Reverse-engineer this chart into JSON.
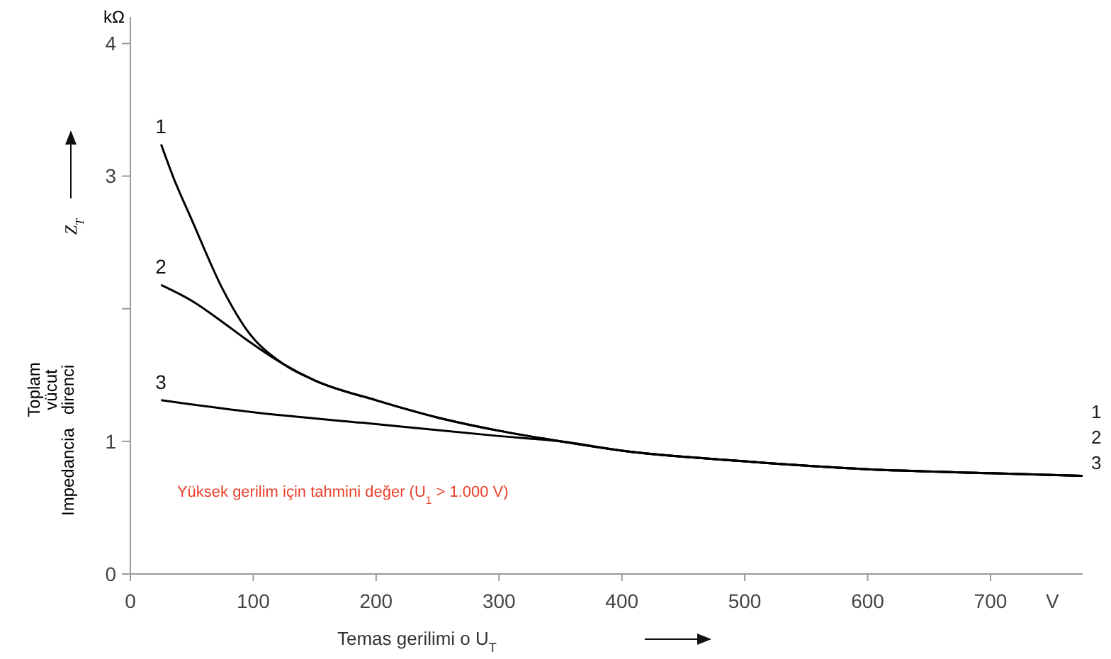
{
  "chart_data": {
    "type": "line",
    "xlabel": "Temas gerilimi  o U$_{T}$",
    "ylabel": "Toplam vücut direnci",
    "xlim": [
      0,
      775
    ],
    "xticks": [
      0,
      100,
      200,
      300,
      400,
      500,
      600,
      700
    ],
    "ylim": [
      0,
      4.2
    ],
    "yticks": [
      0,
      1,
      {
        "value": 2,
        "label": null
      },
      3,
      4
    ],
    "grid": false,
    "marker": "none",
    "line_style": "solid",
    "series": [
      {
        "name": "1",
        "color": "#000000",
        "x": [
          25,
          35,
          50,
          75,
          94,
          125,
          150,
          200,
          250,
          300,
          350,
          400,
          500,
          600,
          700,
          775
        ],
        "values": [
          3.24,
          2.99,
          2.67,
          2.15,
          1.85,
          1.58,
          1.46,
          1.31,
          1.18,
          1.08,
          1.0,
          0.93,
          0.85,
          0.79,
          0.76,
          0.74
        ]
      },
      {
        "name": "2",
        "color": "#000000",
        "x": [
          25,
          50,
          75,
          94,
          125,
          150,
          200,
          250,
          300,
          350,
          400,
          500,
          600,
          700,
          775
        ],
        "values": [
          2.18,
          2.06,
          1.9,
          1.77,
          1.58,
          1.46,
          1.31,
          1.18,
          1.08,
          1.0,
          0.93,
          0.85,
          0.79,
          0.76,
          0.74
        ]
      },
      {
        "name": "3",
        "color": "#000000",
        "x": [
          25,
          100,
          200,
          300,
          350,
          400,
          500,
          600,
          700,
          775
        ],
        "values": [
          1.31,
          1.22,
          1.13,
          1.04,
          1.0,
          0.93,
          0.85,
          0.79,
          0.76,
          0.74
        ]
      }
    ],
    "annotations": [
      "kΩ",
      "V",
      "Impedancia",
      "Z$_{T}$",
      "Yüksek gerilim için tahmini değer (U$_{1}$ > 1.000 V)",
      "1",
      "2",
      "3"
    ]
  }
}
